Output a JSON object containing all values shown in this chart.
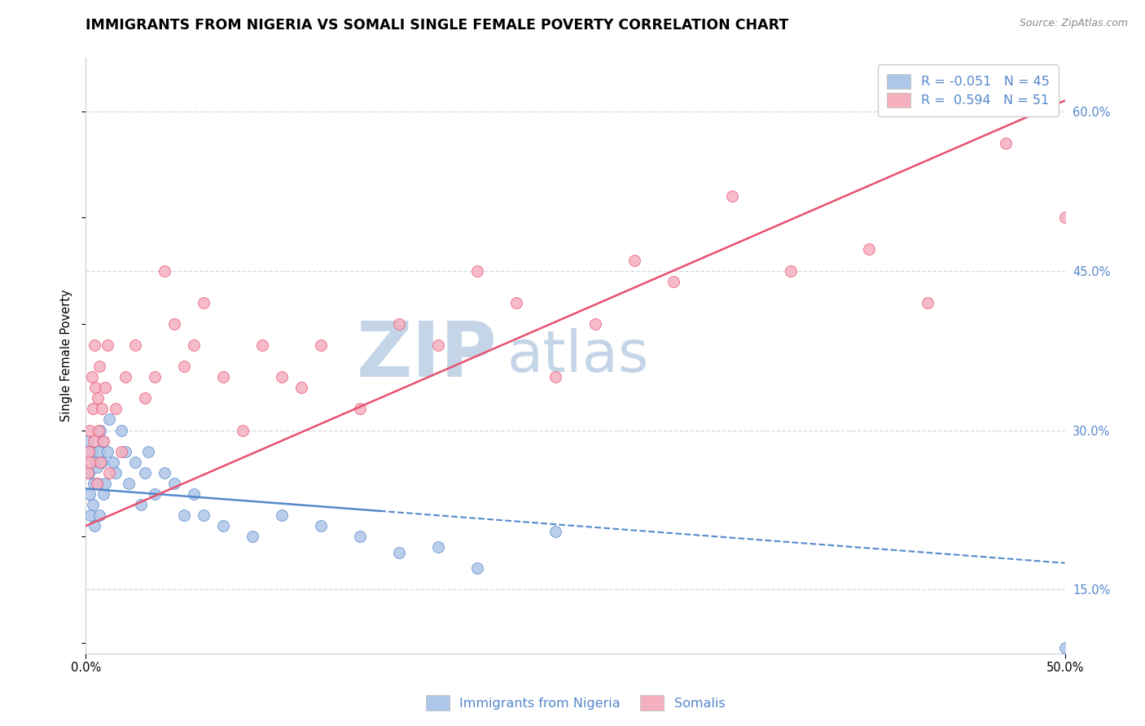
{
  "title": "IMMIGRANTS FROM NIGERIA VS SOMALI SINGLE FEMALE POVERTY CORRELATION CHART",
  "source": "Source: ZipAtlas.com",
  "ylabel": "Single Female Poverty",
  "legend_labels": [
    "Immigrants from Nigeria",
    "Somalis"
  ],
  "legend_r": [
    -0.051,
    0.594
  ],
  "legend_n": [
    45,
    51
  ],
  "xlim": [
    0.0,
    50.0
  ],
  "ylim": [
    9.0,
    65.0
  ],
  "nigeria_color": "#aec6e8",
  "somali_color": "#f5b0c0",
  "nigeria_line_color": "#5588cc",
  "somali_line_color": "#e85070",
  "nigeria_scatter_x": [
    0.1,
    0.15,
    0.2,
    0.25,
    0.3,
    0.35,
    0.4,
    0.45,
    0.5,
    0.55,
    0.6,
    0.65,
    0.7,
    0.75,
    0.8,
    0.85,
    0.9,
    1.0,
    1.1,
    1.2,
    1.4,
    1.5,
    1.8,
    2.0,
    2.2,
    2.5,
    2.8,
    3.0,
    3.2,
    3.5,
    4.0,
    4.5,
    5.0,
    5.5,
    6.0,
    7.0,
    8.5,
    10.0,
    12.0,
    14.0,
    16.0,
    18.0,
    20.0,
    24.0,
    50.0
  ],
  "nigeria_scatter_y": [
    29.0,
    26.0,
    24.0,
    22.0,
    28.0,
    23.0,
    25.0,
    21.0,
    27.0,
    26.5,
    25.0,
    28.0,
    22.0,
    30.0,
    27.0,
    29.0,
    24.0,
    25.0,
    28.0,
    31.0,
    27.0,
    26.0,
    30.0,
    28.0,
    25.0,
    27.0,
    23.0,
    26.0,
    28.0,
    24.0,
    26.0,
    25.0,
    22.0,
    24.0,
    22.0,
    21.0,
    20.0,
    22.0,
    21.0,
    20.0,
    18.5,
    19.0,
    17.0,
    20.5,
    9.5
  ],
  "somali_scatter_x": [
    0.1,
    0.15,
    0.2,
    0.25,
    0.3,
    0.35,
    0.4,
    0.45,
    0.5,
    0.55,
    0.6,
    0.65,
    0.7,
    0.75,
    0.8,
    0.9,
    1.0,
    1.1,
    1.2,
    1.5,
    1.8,
    2.0,
    2.5,
    3.0,
    3.5,
    4.0,
    4.5,
    5.0,
    5.5,
    6.0,
    7.0,
    8.0,
    9.0,
    10.0,
    11.0,
    12.0,
    14.0,
    16.0,
    18.0,
    20.0,
    22.0,
    24.0,
    26.0,
    28.0,
    30.0,
    33.0,
    36.0,
    40.0,
    43.0,
    47.0,
    50.0
  ],
  "somali_scatter_y": [
    26.0,
    28.0,
    30.0,
    27.0,
    35.0,
    32.0,
    29.0,
    38.0,
    34.0,
    25.0,
    33.0,
    30.0,
    36.0,
    27.0,
    32.0,
    29.0,
    34.0,
    38.0,
    26.0,
    32.0,
    28.0,
    35.0,
    38.0,
    33.0,
    35.0,
    45.0,
    40.0,
    36.0,
    38.0,
    42.0,
    35.0,
    30.0,
    38.0,
    35.0,
    34.0,
    38.0,
    32.0,
    40.0,
    38.0,
    45.0,
    42.0,
    35.0,
    40.0,
    46.0,
    44.0,
    52.0,
    45.0,
    47.0,
    42.0,
    57.0,
    50.0
  ],
  "nigeria_trend_x0": 0.0,
  "nigeria_trend_y0": 24.5,
  "nigeria_trend_x1": 50.0,
  "nigeria_trend_y1": 17.5,
  "nigeria_solid_end_x": 15.0,
  "somali_trend_x0": 0.0,
  "somali_trend_y0": 21.0,
  "somali_trend_x1": 50.0,
  "somali_trend_y1": 61.0,
  "watermark_zip": "ZIP",
  "watermark_atlas": "atlas",
  "watermark_color": "#c5d5e8",
  "background_color": "#ffffff",
  "grid_color": "#d0d8e8",
  "title_fontsize": 12.5,
  "axis_fontsize": 10.5,
  "legend_fontsize": 11.5
}
